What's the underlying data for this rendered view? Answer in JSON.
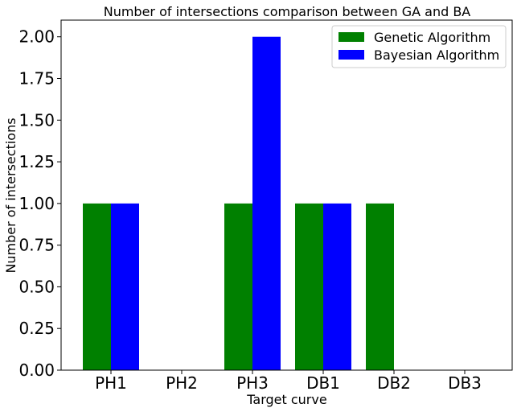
{
  "chart_data": {
    "type": "bar",
    "title": "Number of intersections comparison between GA and BA",
    "xlabel": "Target curve",
    "ylabel": "Number of intersections",
    "categories": [
      "PH1",
      "PH2",
      "PH3",
      "DB1",
      "DB2",
      "DB3"
    ],
    "series": [
      {
        "name": "Genetic Algorithm",
        "color": "#008000",
        "values": [
          1,
          0,
          1,
          1,
          1,
          0
        ]
      },
      {
        "name": "Bayesian Algorithm",
        "color": "#0000ff",
        "values": [
          1,
          0,
          2,
          1,
          0,
          0
        ]
      }
    ],
    "ylim": [
      0,
      2.1
    ],
    "yticks": [
      "0.00",
      "0.25",
      "0.50",
      "0.75",
      "1.00",
      "1.25",
      "1.50",
      "1.75",
      "2.00"
    ],
    "grid": false,
    "legend_position": "top-right"
  }
}
